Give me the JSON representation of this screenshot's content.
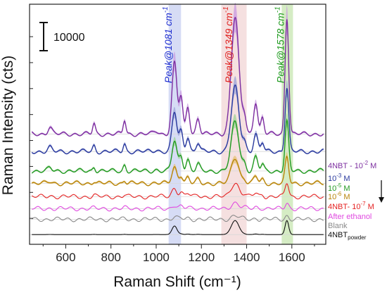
{
  "chart_data": {
    "type": "line",
    "xlabel": "Raman Shift (cm⁻¹)",
    "ylabel": "Raman Intensity (cts)",
    "xlim": [
      440,
      1750
    ],
    "x_ticks": [
      600,
      800,
      1000,
      1200,
      1400,
      1600
    ],
    "x_tick_labels": [
      "600",
      "800",
      "1000",
      "1200",
      "1400",
      "1600"
    ],
    "y_ticks_labeled": false,
    "scale_bar": {
      "label": "10000",
      "value": 10000
    },
    "arrow_direction": "down",
    "arrow_color": "#111111",
    "peak_bands": [
      {
        "label": "Peak@1081 cm",
        "sup": "-1",
        "center": 1081,
        "from": 1055,
        "to": 1110,
        "color": "#1f2fd0",
        "band_color": "#d6dcf5"
      },
      {
        "label": "Peak@1349 cm",
        "sup": "-1",
        "center": 1349,
        "from": 1288,
        "to": 1400,
        "color": "#e0201f",
        "band_color": "#f5e0e0"
      },
      {
        "label": "Peak@1578 cm",
        "sup": "-1",
        "center": 1578,
        "from": 1555,
        "to": 1605,
        "color": "#1e9a1e",
        "band_color": "#d5ecc4"
      }
    ],
    "series": [
      {
        "name": "4NBT - 10",
        "sup": "-2",
        "suffix": " M",
        "color": "#7d2fa0",
        "fill": "#c89ae0",
        "offset": 34000,
        "scale": 1.0,
        "band": true
      },
      {
        "name": "10",
        "sup": "-3",
        "suffix": " M",
        "color": "#2a3a9e",
        "fill": "#9aa2d8",
        "offset": 28600,
        "scale": 0.55,
        "band": true
      },
      {
        "name": "10",
        "sup": "-5",
        "suffix": " M",
        "color": "#239a23",
        "fill": "#9bd494",
        "offset": 22600,
        "scale": 0.42,
        "band": true
      },
      {
        "name": "10",
        "sup": "-6",
        "suffix": " M",
        "color": "#b8860b",
        "fill": "#e5c27a",
        "offset": 18800,
        "scale": 0.22,
        "band": true
      },
      {
        "name": "4NBT- 10",
        "sup": "-7",
        "suffix": " M",
        "color": "#e52222",
        "fill": "#f3a3a3",
        "offset": 14700,
        "scale": 0.12,
        "band": false
      },
      {
        "name": "After ethanol",
        "sup": "",
        "suffix": "",
        "color": "#e04ae0",
        "fill": "#f0b6f0",
        "offset": 11000,
        "scale": 0.05,
        "band": false
      },
      {
        "name": "Blank",
        "sup": "",
        "suffix": "",
        "color": "#8a8a8a",
        "fill": "#cccccc",
        "offset": 7700,
        "scale": 0.03,
        "band": false
      },
      {
        "name": "4NBT",
        "sub": "powder",
        "suffix": "",
        "color": "#111111",
        "fill": "#666666",
        "offset": 3000,
        "scale": 0.12,
        "band": false,
        "peaks_only": true
      }
    ],
    "peaks_reference": [
      {
        "x": 530,
        "h": 2200,
        "w": 9
      },
      {
        "x": 725,
        "h": 3200,
        "w": 6
      },
      {
        "x": 860,
        "h": 4300,
        "w": 6
      },
      {
        "x": 1000,
        "h": 900,
        "w": 10
      },
      {
        "x": 1081,
        "h": 22000,
        "w": 11
      },
      {
        "x": 1110,
        "h": 11000,
        "w": 8
      },
      {
        "x": 1140,
        "h": 8500,
        "w": 8
      },
      {
        "x": 1185,
        "h": 5000,
        "w": 8
      },
      {
        "x": 1349,
        "h": 36000,
        "w": 17
      },
      {
        "x": 1390,
        "h": 5200,
        "w": 8
      },
      {
        "x": 1440,
        "h": 10000,
        "w": 9
      },
      {
        "x": 1470,
        "h": 5000,
        "w": 7
      },
      {
        "x": 1578,
        "h": 36000,
        "w": 8
      }
    ]
  }
}
